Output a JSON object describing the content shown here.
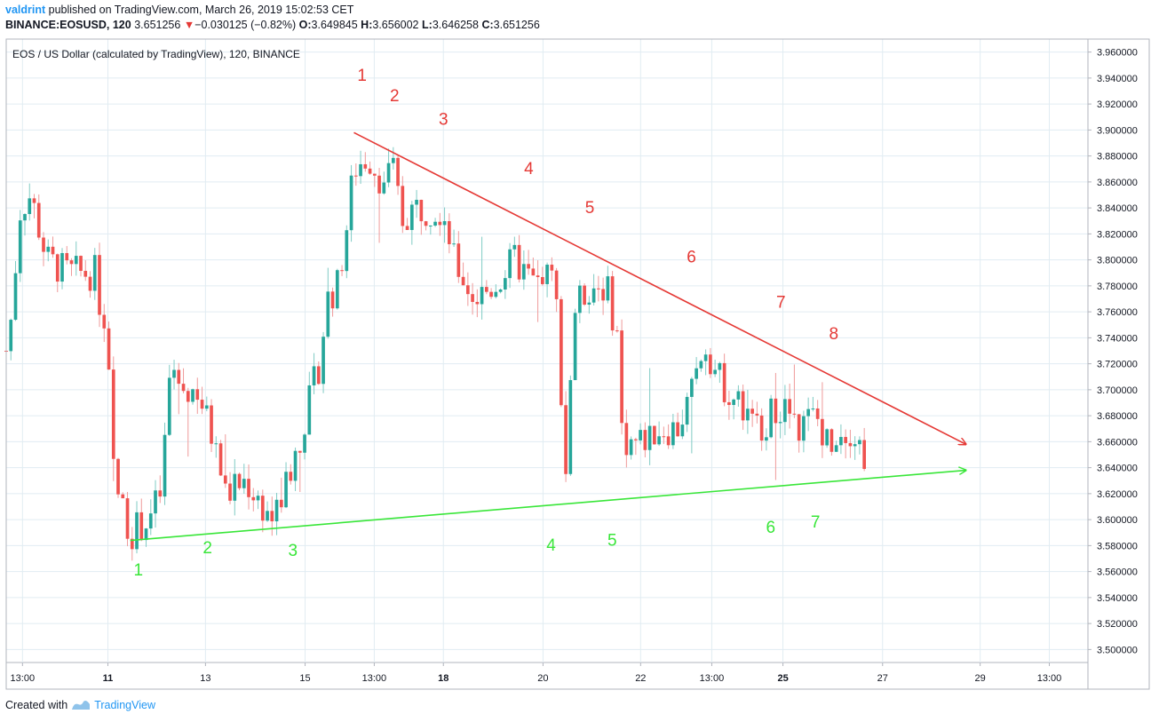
{
  "header": {
    "user": "valdrint",
    "published_text": "published on TradingView.com, March 26, 2019 15:02:53 CET",
    "symbol": "BINANCE:EOSUSD, 120",
    "last_price": "3.651256",
    "change_arrow": "▼",
    "change": "−0.030125 (−0.82%)",
    "o_label": "O:",
    "o_value": "3.649845",
    "h_label": "H:",
    "h_value": "3.656002",
    "l_label": "L:",
    "l_value": "3.646258",
    "c_label": "C:",
    "c_value": "3.651256"
  },
  "chart_data": {
    "type": "candlestick",
    "title": "EOS / US Dollar (calculated by TradingView), 120, BINANCE",
    "ylim": [
      3.49,
      3.97
    ],
    "xlim": [
      0,
      26.6
    ],
    "y_ticks": [
      3.5,
      3.52,
      3.54,
      3.56,
      3.58,
      3.6,
      3.62,
      3.64,
      3.66,
      3.68,
      3.7,
      3.72,
      3.74,
      3.76,
      3.78,
      3.8,
      3.82,
      3.84,
      3.86,
      3.88,
      3.9,
      3.92,
      3.94,
      3.96
    ],
    "y_tick_labels": [
      "3.500000",
      "3.520000",
      "3.540000",
      "3.560000",
      "3.580000",
      "3.600000",
      "3.620000",
      "3.640000",
      "3.660000",
      "3.680000",
      "3.700000",
      "3.720000",
      "3.740000",
      "3.760000",
      "3.780000",
      "3.800000",
      "3.820000",
      "3.840000",
      "3.860000",
      "3.880000",
      "3.900000",
      "3.920000",
      "3.940000",
      "3.960000"
    ],
    "x_ticks": [
      {
        "x": 0.4,
        "label": "13:00",
        "bold": false
      },
      {
        "x": 2.5,
        "label": "11",
        "bold": true
      },
      {
        "x": 4.9,
        "label": "13",
        "bold": false
      },
      {
        "x": 7.35,
        "label": "15",
        "bold": false
      },
      {
        "x": 9.05,
        "label": "13:00",
        "bold": false
      },
      {
        "x": 10.75,
        "label": "18",
        "bold": true
      },
      {
        "x": 13.2,
        "label": "20",
        "bold": false
      },
      {
        "x": 15.6,
        "label": "22",
        "bold": false
      },
      {
        "x": 17.35,
        "label": "13:00",
        "bold": false
      },
      {
        "x": 19.1,
        "label": "25",
        "bold": true
      },
      {
        "x": 21.55,
        "label": "27",
        "bold": false
      },
      {
        "x": 23.95,
        "label": "29",
        "bold": false
      },
      {
        "x": 25.65,
        "label": "13:00",
        "bold": false
      }
    ],
    "candles_profile": [
      [
        0.05,
        3.73
      ],
      [
        0.35,
        3.84
      ],
      [
        0.6,
        3.85
      ],
      [
        1.0,
        3.8
      ],
      [
        1.5,
        3.79
      ],
      [
        2.2,
        3.79
      ],
      [
        2.5,
        3.72
      ],
      [
        2.65,
        3.63
      ],
      [
        3.05,
        3.59
      ],
      [
        3.5,
        3.6
      ],
      [
        3.8,
        3.62
      ],
      [
        4.05,
        3.72
      ],
      [
        4.3,
        3.7
      ],
      [
        4.7,
        3.7
      ],
      [
        5.1,
        3.66
      ],
      [
        5.4,
        3.62
      ],
      [
        5.9,
        3.63
      ],
      [
        6.3,
        3.61
      ],
      [
        6.6,
        3.6
      ],
      [
        6.9,
        3.63
      ],
      [
        7.2,
        3.66
      ],
      [
        7.45,
        3.69
      ],
      [
        7.7,
        3.72
      ],
      [
        7.9,
        3.77
      ],
      [
        8.15,
        3.78
      ],
      [
        8.35,
        3.82
      ],
      [
        8.55,
        3.87
      ],
      [
        8.9,
        3.88
      ],
      [
        9.25,
        3.86
      ],
      [
        9.5,
        3.87
      ],
      [
        9.75,
        3.83
      ],
      [
        10.0,
        3.84
      ],
      [
        10.5,
        3.84
      ],
      [
        10.75,
        3.84
      ],
      [
        11.0,
        3.8
      ],
      [
        11.5,
        3.77
      ],
      [
        12.0,
        3.78
      ],
      [
        12.5,
        3.8
      ],
      [
        13.0,
        3.78
      ],
      [
        13.25,
        3.79
      ],
      [
        13.5,
        3.78
      ],
      [
        13.65,
        3.7
      ],
      [
        13.75,
        3.63
      ],
      [
        13.95,
        3.76
      ],
      [
        14.35,
        3.78
      ],
      [
        14.75,
        3.78
      ],
      [
        15.05,
        3.74
      ],
      [
        15.15,
        3.66
      ],
      [
        15.6,
        3.66
      ],
      [
        16.0,
        3.67
      ],
      [
        16.5,
        3.67
      ],
      [
        16.9,
        3.7
      ],
      [
        17.15,
        3.74
      ],
      [
        17.5,
        3.71
      ],
      [
        18.0,
        3.69
      ],
      [
        18.4,
        3.67
      ],
      [
        18.8,
        3.68
      ],
      [
        19.1,
        3.69
      ],
      [
        19.4,
        3.67
      ],
      [
        19.9,
        3.68
      ],
      [
        20.2,
        3.66
      ],
      [
        20.5,
        3.67
      ],
      [
        20.8,
        3.67
      ],
      [
        21.1,
        3.65
      ]
    ],
    "candle_start_x": 0.0,
    "candle_end_x": 21.1,
    "candle_count": 185,
    "seed": 7,
    "lines": [
      {
        "name": "resistance",
        "color": "#e53935",
        "x1": 8.55,
        "y1": 3.898,
        "x2": 23.6,
        "y2": 3.658,
        "arrow": true
      },
      {
        "name": "support",
        "color": "#39e639",
        "x1": 3.05,
        "y1": 3.584,
        "x2": 23.6,
        "y2": 3.638,
        "arrow": true
      }
    ],
    "annotations": [
      {
        "text": "1",
        "color": "#e53935",
        "x": 8.75,
        "y": 3.938
      },
      {
        "text": "2",
        "color": "#e53935",
        "x": 9.55,
        "y": 3.922
      },
      {
        "text": "3",
        "color": "#e53935",
        "x": 10.75,
        "y": 3.904
      },
      {
        "text": "4",
        "color": "#e53935",
        "x": 12.85,
        "y": 3.866
      },
      {
        "text": "5",
        "color": "#e53935",
        "x": 14.35,
        "y": 3.836
      },
      {
        "text": "6",
        "color": "#e53935",
        "x": 16.85,
        "y": 3.798
      },
      {
        "text": "7",
        "color": "#e53935",
        "x": 19.05,
        "y": 3.763
      },
      {
        "text": "8",
        "color": "#e53935",
        "x": 20.35,
        "y": 3.739
      },
      {
        "text": "1",
        "color": "#39e639",
        "x": 3.25,
        "y": 3.557
      },
      {
        "text": "2",
        "color": "#39e639",
        "x": 4.95,
        "y": 3.574
      },
      {
        "text": "3",
        "color": "#39e639",
        "x": 7.05,
        "y": 3.572
      },
      {
        "text": "4",
        "color": "#39e639",
        "x": 13.4,
        "y": 3.576
      },
      {
        "text": "5",
        "color": "#39e639",
        "x": 14.9,
        "y": 3.58
      },
      {
        "text": "6",
        "color": "#39e639",
        "x": 18.8,
        "y": 3.59
      },
      {
        "text": "7",
        "color": "#39e639",
        "x": 19.9,
        "y": 3.594
      }
    ],
    "colors": {
      "up": "#26a69a",
      "down": "#ef5350",
      "wick_up": "#80cbc4",
      "wick_down": "#ef9a9a",
      "grid": "#e1ecf2"
    }
  },
  "footer": {
    "created_with": "Created with",
    "brand": "TradingView"
  }
}
